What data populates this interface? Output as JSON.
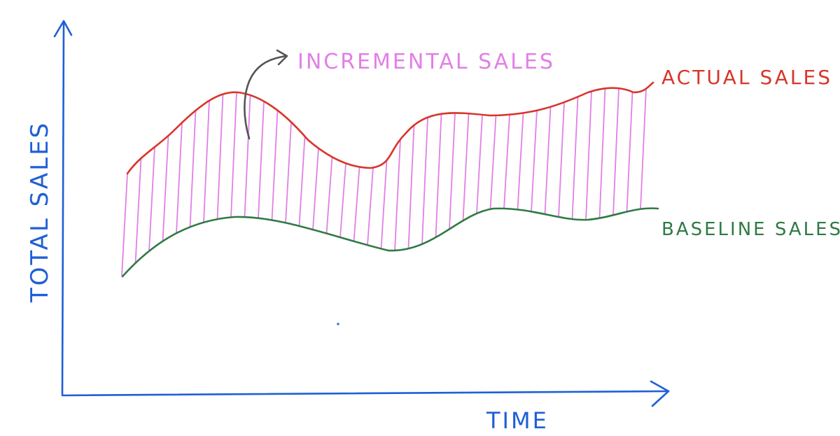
{
  "labels": {
    "y_axis": "TOTAL SALES",
    "x_axis": "TIME",
    "incremental": "INCREMENTAL SALES",
    "actual": "ACTUAL SALES",
    "baseline": "BASELINE SALES"
  },
  "colors": {
    "axis": "#1f5fd6",
    "actual": "#d8352a",
    "baseline": "#2f7a44",
    "incremental": "#e27fe6",
    "annotation_arrow": "#555555"
  },
  "icons": {
    "incremental_pointer": "curved-arrow-icon"
  }
}
